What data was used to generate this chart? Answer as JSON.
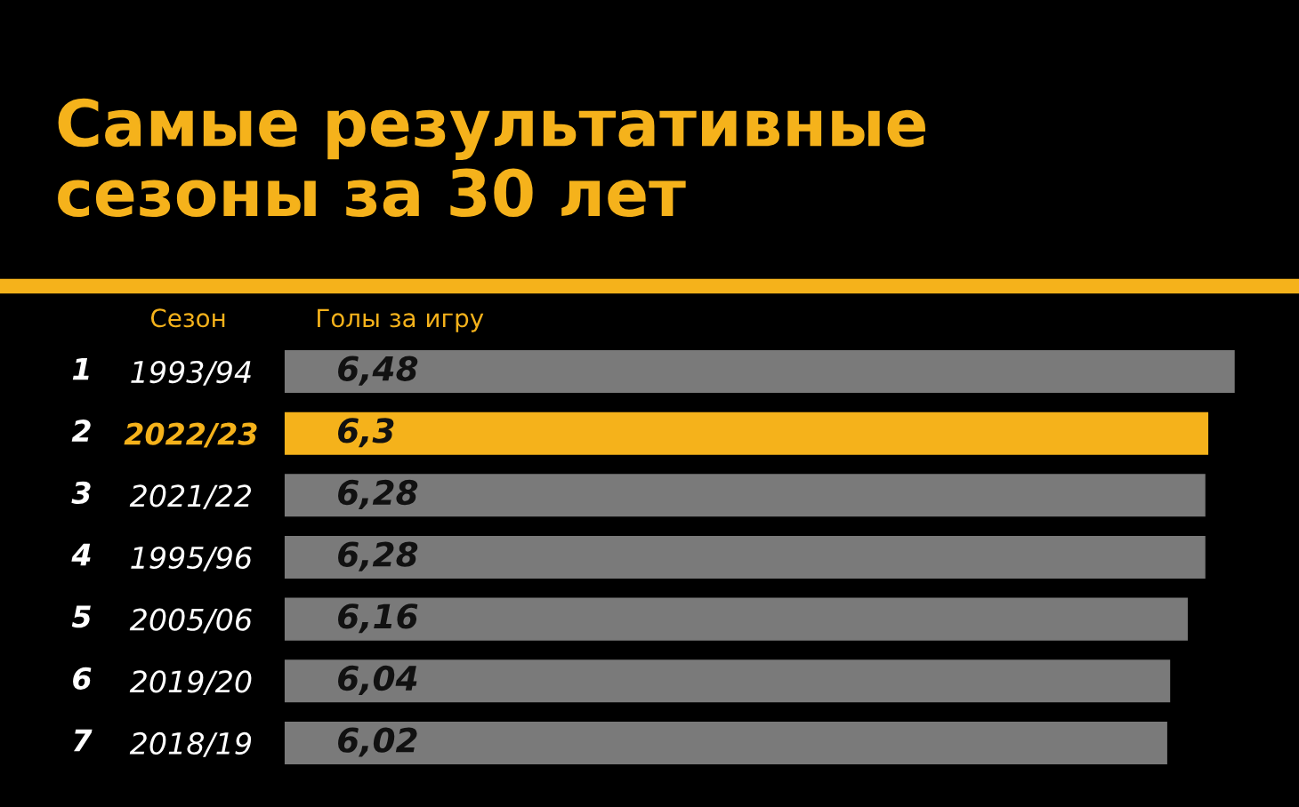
{
  "chart_data": {
    "type": "bar",
    "orientation": "horizontal",
    "title": "Самые результативные\nсезоны за 30 лет",
    "ylabel": "Сезон",
    "xlabel": "Голы за игру",
    "categories": [
      "1993/94",
      "2022/23",
      "2021/22",
      "1995/96",
      "2005/06",
      "2019/20",
      "2018/19"
    ],
    "values": [
      6.48,
      6.3,
      6.28,
      6.28,
      6.16,
      6.04,
      6.02
    ],
    "value_labels": [
      "6,48",
      "6,3",
      "6,28",
      "6,28",
      "6,16",
      "6,04",
      "6,02"
    ],
    "colors": [
      "#7a7a7a",
      "#f5b21b",
      "#7a7a7a",
      "#7a7a7a",
      "#7a7a7a",
      "#7a7a7a",
      "#7a7a7a"
    ],
    "annotations": [
      "1",
      "2",
      "3",
      "4",
      "5",
      "6",
      "7"
    ]
  }
}
